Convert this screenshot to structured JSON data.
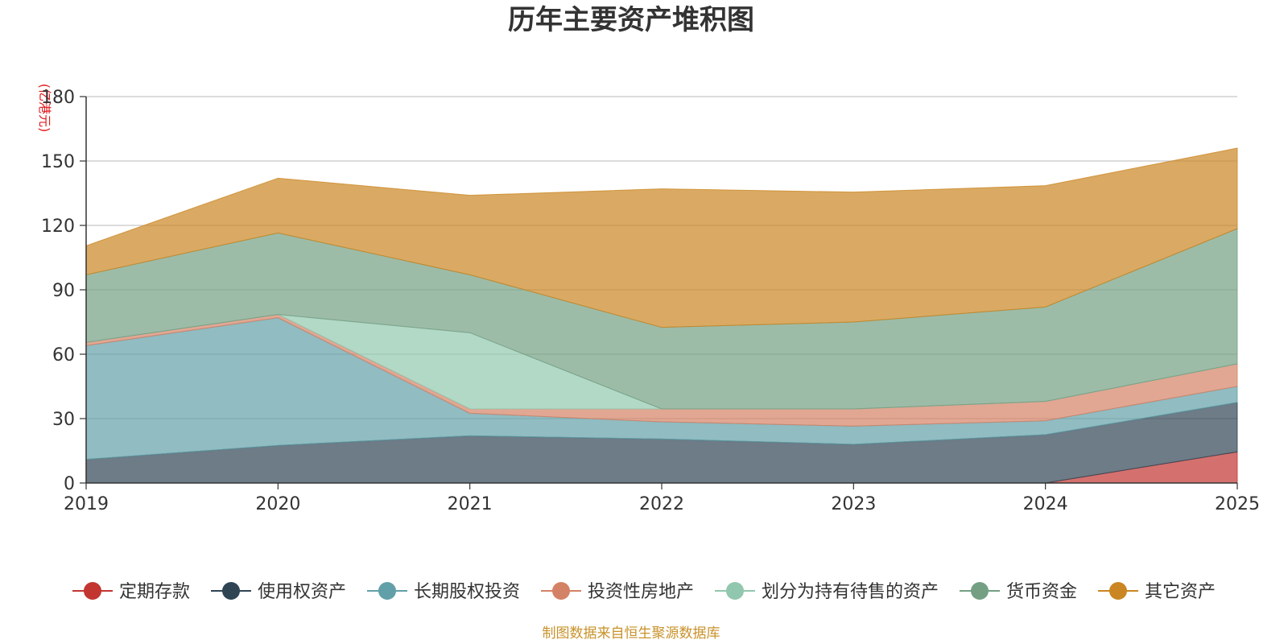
{
  "chart_data": {
    "type": "area",
    "stacked": true,
    "title": "历年主要资产堆积图",
    "ylabel": "(亿港元)",
    "xlabel": "",
    "categories": [
      "2019",
      "2020",
      "2021",
      "2022",
      "2023",
      "2024",
      "2025"
    ],
    "ylim": [
      0,
      180
    ],
    "yticks": [
      0,
      30,
      60,
      90,
      120,
      150,
      180
    ],
    "grid": true,
    "legend_position": "bottom",
    "series": [
      {
        "name": "定期存款",
        "color": "#c23531",
        "values": [
          0,
          0,
          0,
          0,
          0,
          0,
          14.5
        ]
      },
      {
        "name": "使用权资产",
        "color": "#2f4554",
        "values": [
          11,
          17.5,
          22,
          20.5,
          18,
          22.5,
          23
        ]
      },
      {
        "name": "长期股权投资",
        "color": "#61a0a8",
        "values": [
          53,
          59.5,
          10.5,
          8,
          8.5,
          6.5,
          7.5
        ]
      },
      {
        "name": "投资性房地产",
        "color": "#d48265",
        "values": [
          1.5,
          1.5,
          2,
          6,
          8,
          9,
          10.5
        ]
      },
      {
        "name": "划分为持有待售的资产",
        "color": "#91c7ae",
        "values": [
          0,
          0,
          35.5,
          0,
          0,
          0,
          0
        ]
      },
      {
        "name": "货币资金",
        "color": "#749f83",
        "values": [
          31.5,
          38,
          27,
          38,
          40.5,
          44,
          63
        ]
      },
      {
        "name": "其它资产",
        "color": "#ca8622",
        "values": [
          13.5,
          25.5,
          37,
          64.5,
          60.5,
          56.5,
          37.5
        ]
      }
    ]
  },
  "source_note": "制图数据来自恒生聚源数据库"
}
